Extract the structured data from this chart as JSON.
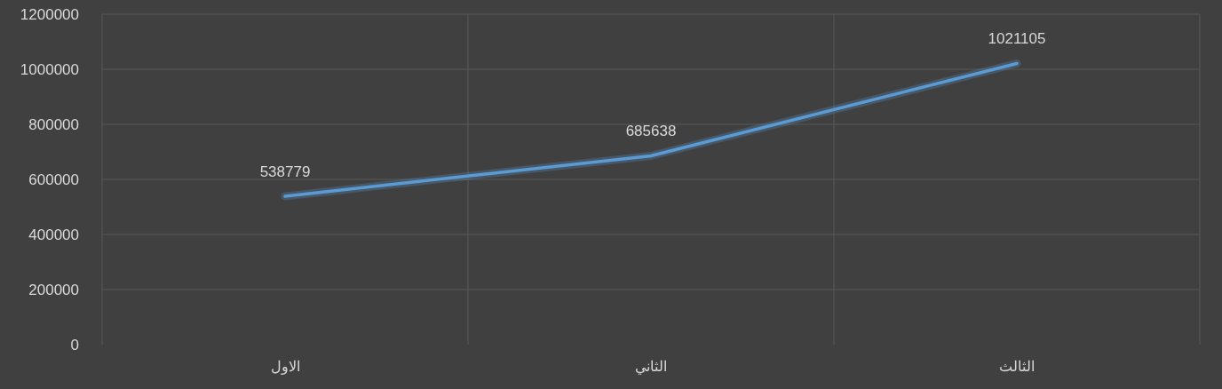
{
  "chart_data": {
    "type": "line",
    "categories": [
      "الاول",
      "الثاني",
      "الثالث"
    ],
    "series": [
      {
        "color": "#5b9bd5",
        "values": [
          538779,
          685638,
          1021105
        ]
      }
    ],
    "ylim": [
      0,
      1200000
    ],
    "yticks": [
      0,
      200000,
      400000,
      600000,
      800000,
      1000000,
      1200000
    ],
    "grid": true,
    "data_labels": true,
    "marker": "none",
    "line_style": "solid"
  }
}
